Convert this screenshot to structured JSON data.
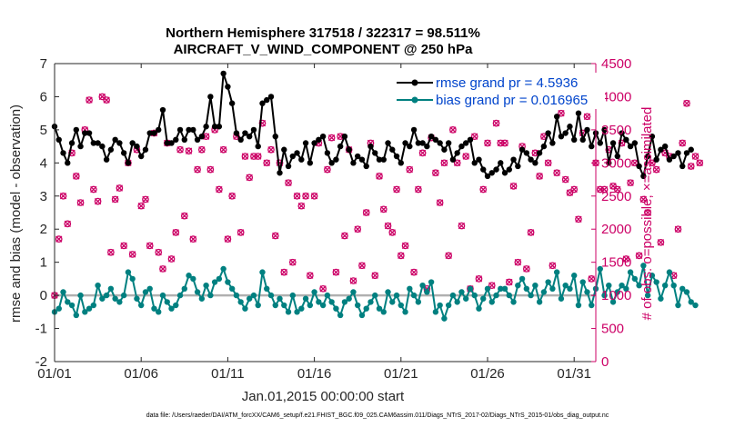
{
  "chart_data": {
    "type": "line",
    "title_line1": "Northern Hemisphere 317518 / 322317 = 98.511%",
    "title_line2": "AIRCRAFT_V_WIND_COMPONENT @ 250 hPa",
    "xlabel": "Jan.01,2015 00:00:00 start",
    "ylabel_left": "rmse and bias (model - observation)",
    "ylabel_right": "# of obs: o=possible; ×=assimilated",
    "x_range": [
      0,
      31.25
    ],
    "ylim_left": [
      -2,
      7
    ],
    "ylim_right": [
      0,
      4500
    ],
    "x_ticks": [
      {
        "pos": 0,
        "label": "01/01"
      },
      {
        "pos": 5,
        "label": "01/06"
      },
      {
        "pos": 10,
        "label": "01/11"
      },
      {
        "pos": 15,
        "label": "01/16"
      },
      {
        "pos": 20,
        "label": "01/21"
      },
      {
        "pos": 25,
        "label": "01/26"
      },
      {
        "pos": 30,
        "label": "01/31"
      }
    ],
    "y_ticks_left": [
      {
        "v": -2,
        "label": "-2"
      },
      {
        "v": -1,
        "label": "-1"
      },
      {
        "v": 0,
        "label": "0"
      },
      {
        "v": 1,
        "label": "1"
      },
      {
        "v": 2,
        "label": "2"
      },
      {
        "v": 3,
        "label": "3"
      },
      {
        "v": 4,
        "label": "4"
      },
      {
        "v": 5,
        "label": "5"
      },
      {
        "v": 6,
        "label": "6"
      },
      {
        "v": 7,
        "label": "7"
      }
    ],
    "y_ticks_right": [
      {
        "v": 0,
        "label": "0"
      },
      {
        "v": 500,
        "label": "500"
      },
      {
        "v": 1000,
        "label": "1000"
      },
      {
        "v": 1500,
        "label": "1500"
      },
      {
        "v": 2000,
        "label": "2000"
      },
      {
        "v": 2500,
        "label": "2500"
      },
      {
        "v": 3000,
        "label": "3000"
      },
      {
        "v": 3500,
        "label": "3500"
      },
      {
        "v": 4000,
        "label": "4000"
      },
      {
        "v": 4500,
        "label": "4500"
      }
    ],
    "dt_hours": 6,
    "series": [
      {
        "name": "rmse",
        "legend": "rmse grand pr = 4.5936",
        "color": "#000000",
        "values": [
          5.1,
          4.7,
          4.3,
          4.0,
          4.6,
          5.0,
          4.5,
          4.9,
          4.9,
          4.6,
          4.6,
          4.5,
          4.1,
          4.4,
          4.7,
          4.6,
          4.3,
          4.0,
          4.6,
          4.5,
          4.2,
          4.4,
          4.9,
          4.9,
          5.0,
          5.6,
          4.6,
          4.6,
          4.7,
          5.0,
          4.7,
          5.0,
          5.0,
          4.7,
          4.8,
          5.1,
          6.0,
          5.1,
          5.1,
          6.7,
          6.3,
          5.8,
          4.9,
          4.7,
          4.9,
          4.8,
          5.0,
          4.5,
          5.8,
          5.9,
          6.0,
          4.8,
          3.7,
          4.4,
          3.9,
          4.2,
          4.3,
          4.1,
          4.6,
          4.0,
          4.6,
          4.7,
          4.8,
          4.3,
          4.0,
          4.1,
          4.5,
          4.8,
          4.4,
          4.0,
          4.2,
          4.1,
          3.9,
          4.5,
          4.3,
          4.1,
          4.1,
          4.6,
          4.4,
          4.2,
          4.0,
          4.6,
          4.5,
          5.0,
          4.6,
          4.6,
          4.5,
          4.8,
          4.7,
          4.6,
          4.4,
          4.6,
          4.1,
          4.3,
          4.5,
          4.6,
          4.7,
          4.0,
          4.1,
          3.8,
          3.6,
          3.7,
          3.8,
          4.0,
          3.7,
          3.8,
          4.1,
          3.9,
          4.4,
          4.3,
          4.1,
          4.0,
          4.3,
          4.5,
          4.9,
          4.6,
          5.4,
          4.8,
          4.9,
          5.1,
          4.7,
          5.5,
          4.7,
          5.0,
          4.5,
          4.9,
          4.6,
          5.0,
          4.0,
          4.6,
          4.2,
          4.9,
          4.7,
          4.5,
          4.6,
          3.9,
          3.6,
          4.2,
          4.8,
          4.1,
          4.4,
          4.5,
          4.1,
          4.2,
          4.3,
          3.9,
          4.3,
          4.4
        ]
      },
      {
        "name": "bias",
        "legend": "bias grand pr = 0.016965",
        "color": "#008080",
        "values": [
          -0.5,
          -0.4,
          0.1,
          -0.2,
          -0.3,
          -0.6,
          0.0,
          -0.5,
          -0.4,
          -0.3,
          0.3,
          -0.1,
          0.0,
          0.2,
          -0.1,
          -0.2,
          0.0,
          0.7,
          0.5,
          -0.1,
          -0.3,
          0.1,
          0.2,
          -0.4,
          -0.5,
          0.0,
          -0.2,
          -0.4,
          -0.3,
          0.0,
          0.2,
          0.6,
          0.5,
          0.1,
          -0.1,
          0.3,
          0.0,
          0.4,
          0.5,
          0.8,
          0.4,
          0.2,
          0.0,
          -0.2,
          -0.4,
          -0.1,
          0.0,
          -0.3,
          0.7,
          0.2,
          0.0,
          -0.3,
          -0.1,
          -0.3,
          -0.5,
          0.0,
          -0.5,
          -0.4,
          -0.1,
          -0.3,
          0.1,
          -0.2,
          -0.3,
          0.0,
          -0.2,
          -0.4,
          -0.6,
          -0.2,
          -0.1,
          0.1,
          -0.3,
          -0.6,
          -0.4,
          -0.2,
          0.0,
          -0.4,
          -0.5,
          0.1,
          -0.2,
          0.0,
          -0.3,
          -0.5,
          0.2,
          0.0,
          -0.2,
          0.3,
          0.1,
          0.4,
          -0.5,
          -0.3,
          -0.7,
          -0.3,
          0.0,
          -0.2,
          0.1,
          -0.1,
          0.2,
          0.0,
          -0.4,
          -0.1,
          0.2,
          -0.2,
          0.0,
          0.2,
          0.2,
          0.0,
          -0.2,
          0.3,
          0.5,
          0.2,
          0.0,
          0.3,
          -0.2,
          0.1,
          0.4,
          0.2,
          0.7,
          -0.1,
          0.3,
          0.2,
          0.6,
          -0.3,
          0.4,
          0.1,
          -0.3,
          0.2,
          0.8,
          0.0,
          0.3,
          -0.2,
          0.1,
          0.3,
          0.2,
          0.7,
          0.5,
          0.3,
          0.9,
          0.0,
          0.6,
          0.4,
          -0.1,
          0.3,
          0.7,
          0.3,
          -0.3,
          0.2,
          0.1,
          -0.2,
          -0.3
        ]
      },
      {
        "name": "obs_possible",
        "legend": "o=possible",
        "color": "#cc0066",
        "values": [
          1000,
          1850,
          2500,
          2080,
          3150,
          2800,
          2400,
          3500,
          3950,
          2600,
          2420,
          4000,
          3950,
          1650,
          2450,
          2620,
          1750,
          3000,
          1620,
          3200,
          2350,
          2450,
          1750,
          3450,
          1650,
          1400,
          3300,
          1550,
          1950,
          3200,
          2200,
          3180,
          1850,
          2900,
          3200,
          3400,
          2900,
          3500,
          2600,
          3200,
          1850,
          2500,
          3400,
          1950,
          3100,
          2780,
          3100,
          3100,
          3600,
          3000,
          3200,
          1900,
          3000,
          1350,
          2700,
          1500,
          2500,
          2350,
          2500,
          1300,
          2500,
          3300,
          1100,
          2900,
          3380,
          1350,
          3400,
          1900,
          3200,
          1220,
          2000,
          1450,
          2250,
          3300,
          1300,
          2800,
          2300,
          2050,
          1950,
          2600,
          1600,
          1750,
          2900,
          1350,
          2600,
          3150,
          1100,
          3380,
          2850,
          2400,
          3000,
          1600,
          3500,
          3000,
          2050,
          3100,
          1100,
          3400,
          1250,
          2600,
          3300,
          1150,
          3600,
          3300,
          3300,
          1200,
          2650,
          1500,
          3250,
          1400,
          1950,
          3150,
          2800,
          3400,
          3000,
          1450,
          2850,
          3750,
          2750,
          2550,
          2600,
          2150,
          3450,
          3700,
          1250,
          3000,
          2600,
          2600,
          3200,
          2650,
          2600,
          3300,
          1550,
          2700,
          3000,
          1600,
          2450,
          2250,
          3000,
          2900,
          1800,
          3150,
          3100,
          1300,
          2000,
          3300,
          3900,
          2950,
          3100,
          3000
        ]
      },
      {
        "name": "obs_assimilated",
        "legend": "×=assimilated",
        "color": "#cc0066",
        "values": [
          1000,
          1850,
          2500,
          2080,
          3150,
          2800,
          2400,
          3500,
          3950,
          2600,
          2420,
          4000,
          3950,
          1650,
          2450,
          2620,
          1750,
          3000,
          1620,
          3200,
          2350,
          2450,
          1750,
          3450,
          1650,
          1400,
          3300,
          1550,
          1950,
          3200,
          2200,
          3180,
          1850,
          2900,
          3200,
          3400,
          2900,
          3500,
          2600,
          3200,
          1850,
          2500,
          3400,
          1950,
          3100,
          2780,
          3100,
          3100,
          3600,
          3000,
          3200,
          1900,
          3000,
          1350,
          2700,
          1500,
          2500,
          2350,
          2500,
          1300,
          2500,
          3300,
          1100,
          2900,
          3380,
          1350,
          3400,
          1900,
          3200,
          1220,
          2000,
          1450,
          2250,
          3300,
          1300,
          2800,
          2300,
          2050,
          1950,
          2600,
          1600,
          1750,
          2900,
          1350,
          2600,
          3150,
          1100,
          3380,
          2850,
          2400,
          3000,
          1600,
          3500,
          3000,
          2050,
          3100,
          1100,
          3400,
          1250,
          2600,
          3300,
          1150,
          3600,
          3300,
          3300,
          1200,
          2650,
          1500,
          3250,
          1400,
          1950,
          3150,
          2800,
          3400,
          3000,
          1450,
          2850,
          3750,
          2750,
          2550,
          2600,
          2150,
          3450,
          3700,
          1250,
          3000,
          2600,
          2600,
          3200,
          2650,
          2600,
          3300,
          1550,
          2700,
          3000,
          1600,
          2450,
          2250,
          3000,
          2900,
          1800,
          3150,
          3100,
          1300,
          2000,
          3300,
          3900,
          2950,
          3100,
          3000
        ]
      }
    ],
    "footnote": "data file: /Users/raeder/DAI/ATM_forcXX/CAM6_setup/f.e21.FHIST_BGC.f09_025.CAM6assim.011/Diags_NTrS_2017-02/Diags_NTrS_2015-01/obs_diag_output.nc"
  }
}
